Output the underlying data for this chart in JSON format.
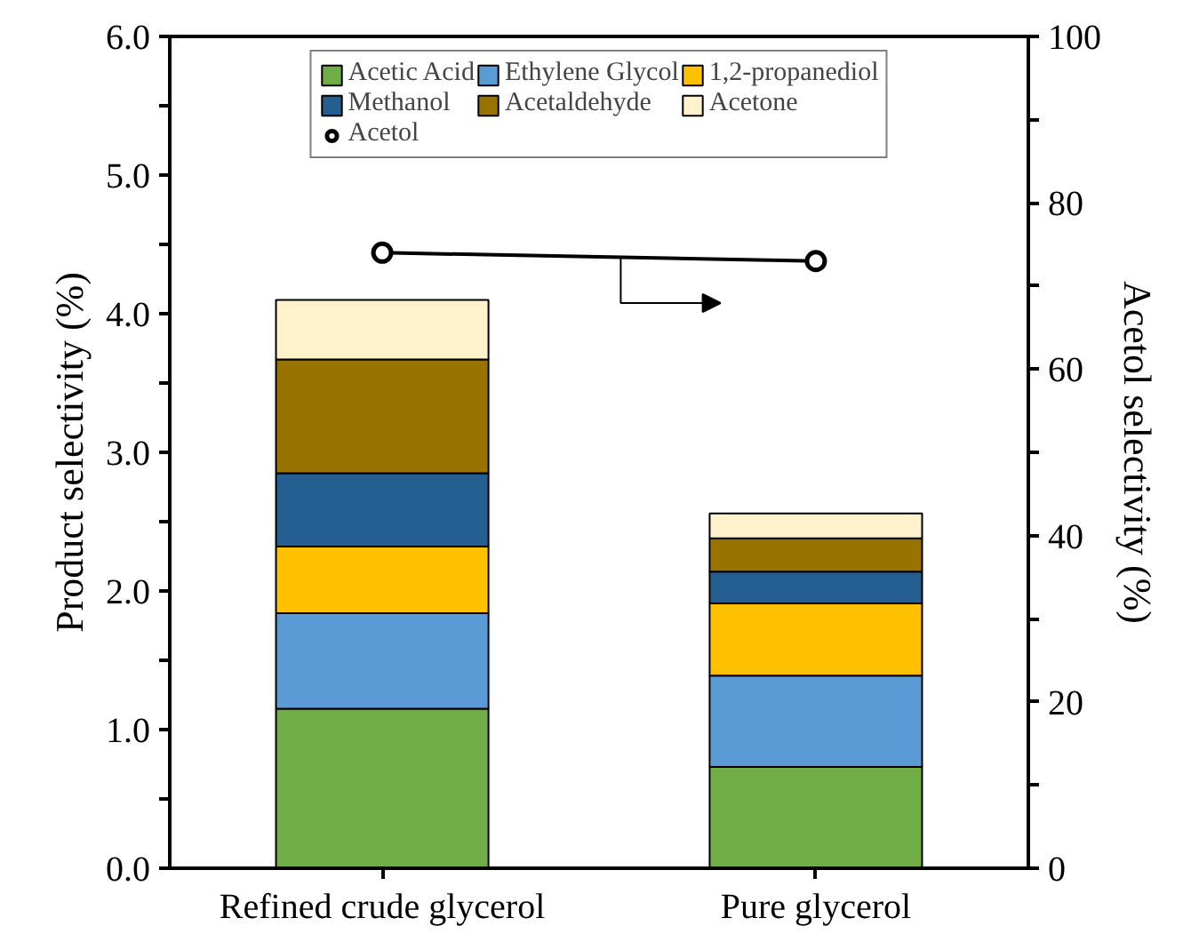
{
  "chart_data": {
    "type": "bar",
    "stacked": true,
    "categories": [
      "Refined crude glycerol",
      "Pure glycerol"
    ],
    "ylabel": "Product selectivity (%)",
    "y2label": "Acetol selectivity (%)",
    "ylim": [
      0,
      6
    ],
    "yticks": [
      {
        "value": 0,
        "label": "0.0"
      },
      {
        "value": 0.5,
        "label": null
      },
      {
        "value": 1,
        "label": "1.0"
      },
      {
        "value": 1.5,
        "label": null
      },
      {
        "value": 2,
        "label": "2.0"
      },
      {
        "value": 2.5,
        "label": null
      },
      {
        "value": 3,
        "label": "3.0"
      },
      {
        "value": 3.5,
        "label": null
      },
      {
        "value": 4,
        "label": "4.0"
      },
      {
        "value": 4.5,
        "label": null
      },
      {
        "value": 5,
        "label": "5.0"
      },
      {
        "value": 5.5,
        "label": null
      },
      {
        "value": 6,
        "label": "6.0"
      }
    ],
    "y2lim": [
      0,
      100
    ],
    "y2ticks": [
      0,
      {
        "value": 10,
        "label": null
      },
      20,
      {
        "value": 30,
        "label": null
      },
      40,
      {
        "value": 50,
        "label": null
      },
      60,
      {
        "value": 70,
        "label": null
      },
      80,
      {
        "value": 90,
        "label": null
      },
      100
    ],
    "series": [
      {
        "name": "Acetic Acid",
        "color": "#70ad47",
        "values": [
          1.15,
          0.73
        ]
      },
      {
        "name": "Ethylene Glycol",
        "color": "#5b9bd5",
        "values": [
          0.69,
          0.66
        ]
      },
      {
        "name": "1,2-propanediol",
        "color": "#ffc000",
        "values": [
          0.48,
          0.52
        ]
      },
      {
        "name": "Methanol",
        "color": "#255e91",
        "values": [
          0.53,
          0.23
        ]
      },
      {
        "name": "Acetaldehyde",
        "color": "#997300",
        "values": [
          0.82,
          0.24
        ]
      },
      {
        "name": "Acetone",
        "color": "#fff2cc",
        "values": [
          0.43,
          0.18
        ]
      },
      {
        "name": "Acetol",
        "type": "line",
        "axis": "y2",
        "color": "#000000",
        "marker": "circle",
        "values": [
          74,
          73
        ]
      }
    ],
    "legend": "top",
    "grid": false
  }
}
